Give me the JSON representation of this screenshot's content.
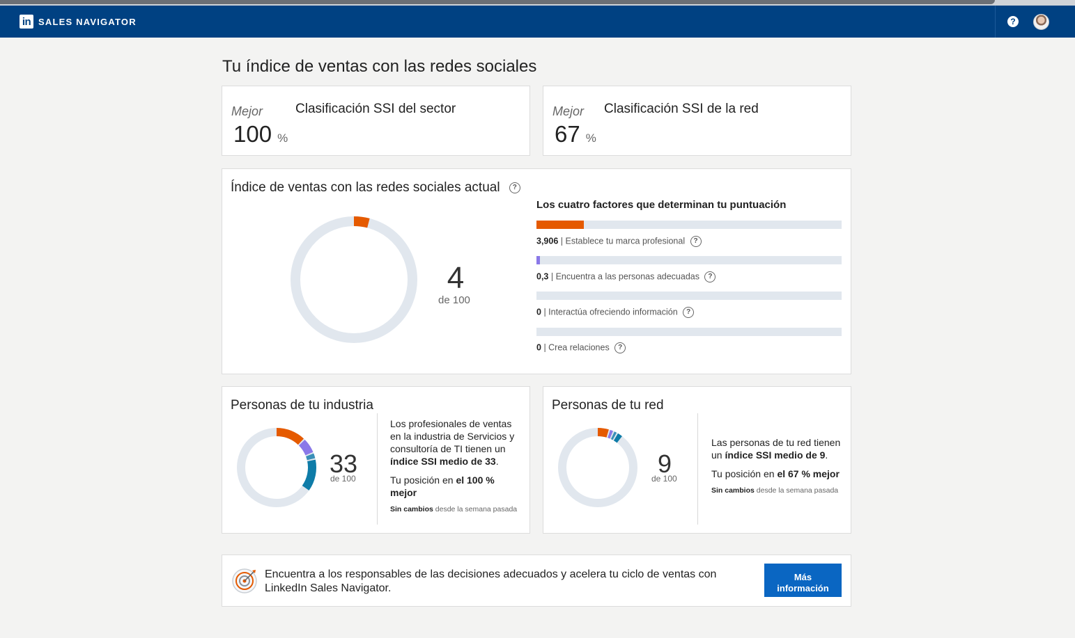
{
  "navbar": {
    "logo": "in",
    "brand": "SALES NAVIGATOR",
    "help_icon": "?",
    "icons": [
      "linkedin-logo-icon",
      "help-icon",
      "avatar"
    ]
  },
  "page": {
    "title": "Tu índice de ventas con las redes sociales"
  },
  "rank_cards": [
    {
      "better": "Mejor",
      "title": "Clasificación SSI del sector",
      "value": "100",
      "unit": "%"
    },
    {
      "better": "Mejor",
      "title": "Clasificación SSI de la red",
      "value": "67",
      "unit": "%"
    }
  ],
  "ssi": {
    "title": "Índice de ventas con las redes sociales actual",
    "score": "4",
    "score_sub": "de 100",
    "score_value": 4,
    "factors_title": "Los cuatro factores que determinan tu puntuación",
    "factors": [
      {
        "value": "3,906",
        "label": "| Establece tu marca profesional",
        "fill": 0.156,
        "color": "#e55a00"
      },
      {
        "value": "0,3",
        "label": "| Encuentra a las personas adecuadas",
        "fill": 0.012,
        "color": "#8a78e8"
      },
      {
        "value": "0",
        "label": "| Interactúa ofreciendo información",
        "fill": 0,
        "color": "#3aa0c8"
      },
      {
        "value": "0",
        "label": "| Crea relaciones",
        "fill": 0,
        "color": "#0e7ca8"
      }
    ]
  },
  "industry": {
    "title": "Personas de tu industria",
    "score": "33",
    "score_sub": "de 100",
    "text_1": "Los profesionales de ventas en la industria de Servicios y consultoría de TI tienen un",
    "text_1_bold": "índice SSI medio de 33",
    "text_1_end": ".",
    "pos_1": "Tu posición en",
    "pos_bold": "el 100 % mejor",
    "nochange_bold": "Sin cambios",
    "nochange": "desde la semana pasada",
    "segments": [
      0.12,
      0.06,
      0.02,
      0.13
    ]
  },
  "network": {
    "title": "Personas de tu red",
    "score": "9",
    "score_sub": "de 100",
    "text_1": "Las personas de tu red tienen un",
    "text_1_bold": "índice SSI medio de 9",
    "text_1_end": ".",
    "pos_1": "Tu posición en",
    "pos_bold": "el 67 % mejor",
    "nochange_bold": "Sin cambios",
    "nochange": "desde la semana pasada",
    "segments": [
      0.045,
      0.012,
      0.01,
      0.02
    ]
  },
  "banner": {
    "text": "Encuentra a los responsables de las decisiones adecuados y acelera tu ciclo de ventas con LinkedIn Sales Navigator.",
    "button": "Más información"
  },
  "colors": {
    "navbar": "#004182",
    "orange": "#e55a00",
    "purple": "#8a78e8",
    "blue": "#0e7ca8",
    "ring": "#e1e7ee",
    "button": "#0a66c2"
  }
}
